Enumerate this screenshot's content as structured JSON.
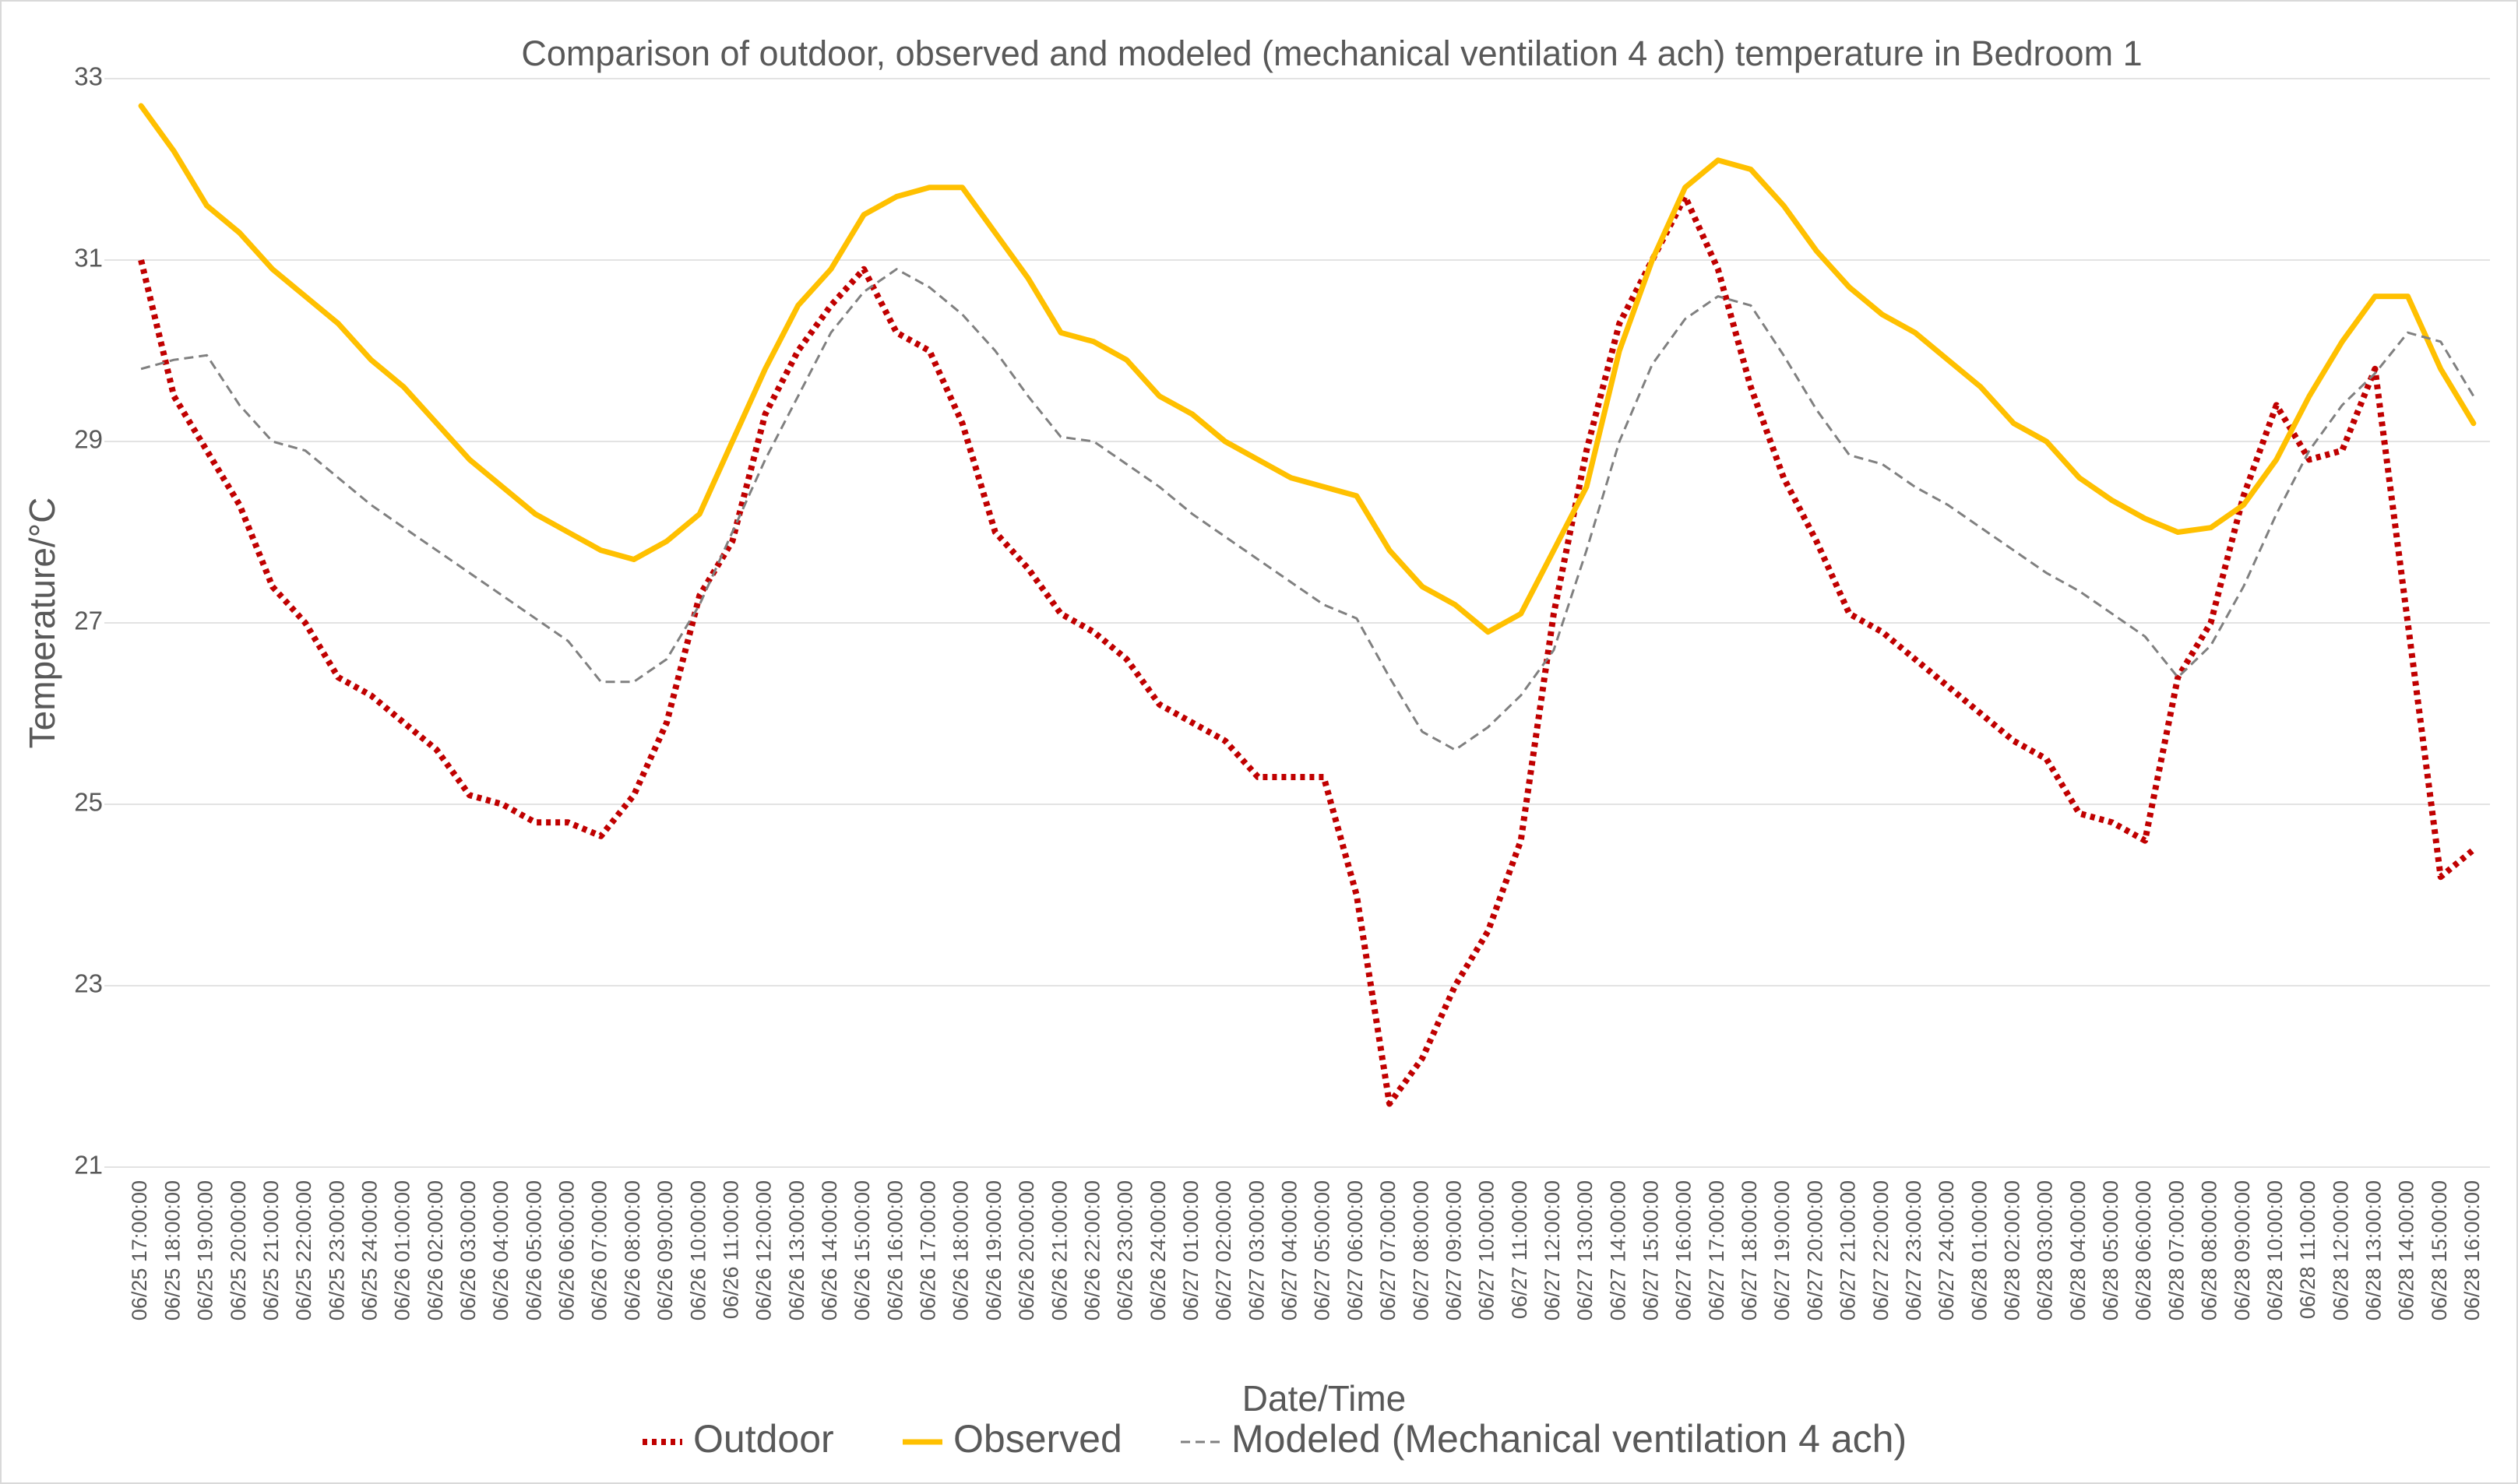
{
  "chart_data": {
    "type": "line",
    "title": "Comparison of outdoor, observed and modeled (mechanical ventilation 4 ach) temperature in Bedroom 1",
    "xlabel": "Date/Time",
    "ylabel": "Temperature/°C",
    "categories": [
      "06/25 17:00:00",
      "06/25 18:00:00",
      "06/25 19:00:00",
      "06/25 20:00:00",
      "06/25 21:00:00",
      "06/25 22:00:00",
      "06/25 23:00:00",
      "06/25 24:00:00",
      "06/26 01:00:00",
      "06/26 02:00:00",
      "06/26 03:00:00",
      "06/26 04:00:00",
      "06/26 05:00:00",
      "06/26 06:00:00",
      "06/26 07:00:00",
      "06/26 08:00:00",
      "06/26 09:00:00",
      "06/26 10:00:00",
      "06/26 11:00:00",
      "06/26 12:00:00",
      "06/26 13:00:00",
      "06/26 14:00:00",
      "06/26 15:00:00",
      "06/26 16:00:00",
      "06/26 17:00:00",
      "06/26 18:00:00",
      "06/26 19:00:00",
      "06/26 20:00:00",
      "06/26 21:00:00",
      "06/26 22:00:00",
      "06/26 23:00:00",
      "06/26 24:00:00",
      "06/27 01:00:00",
      "06/27 02:00:00",
      "06/27 03:00:00",
      "06/27 04:00:00",
      "06/27 05:00:00",
      "06/27 06:00:00",
      "06/27 07:00:00",
      "06/27 08:00:00",
      "06/27 09:00:00",
      "06/27 10:00:00",
      "06/27 11:00:00",
      "06/27 12:00:00",
      "06/27 13:00:00",
      "06/27 14:00:00",
      "06/27 15:00:00",
      "06/27 16:00:00",
      "06/27 17:00:00",
      "06/27 18:00:00",
      "06/27 19:00:00",
      "06/27 20:00:00",
      "06/27 21:00:00",
      "06/27 22:00:00",
      "06/27 23:00:00",
      "06/27 24:00:00",
      "06/28 01:00:00",
      "06/28 02:00:00",
      "06/28 03:00:00",
      "06/28 04:00:00",
      "06/28 05:00:00",
      "06/28 06:00:00",
      "06/28 07:00:00",
      "06/28 08:00:00",
      "06/28 09:00:00",
      "06/28 10:00:00",
      "06/28 11:00:00",
      "06/28 12:00:00",
      "06/28 13:00:00",
      "06/28 14:00:00",
      "06/28 15:00:00",
      "06/28 16:00:00"
    ],
    "series": [
      {
        "name": "Outdoor",
        "color": "#c00000",
        "dash": "dotted",
        "values": [
          31.0,
          29.5,
          28.9,
          28.3,
          27.4,
          27.0,
          26.4,
          26.2,
          25.9,
          25.6,
          25.1,
          25.0,
          24.8,
          24.8,
          24.65,
          25.1,
          25.9,
          27.3,
          27.9,
          29.3,
          30.0,
          30.5,
          30.9,
          30.2,
          30.0,
          29.2,
          28.0,
          27.6,
          27.1,
          26.9,
          26.6,
          26.1,
          25.9,
          25.7,
          25.3,
          25.3,
          25.3,
          24.0,
          21.7,
          22.2,
          23.0,
          23.6,
          24.6,
          27.1,
          28.9,
          30.3,
          31.0,
          31.7,
          30.9,
          29.6,
          28.6,
          27.9,
          27.1,
          26.9,
          26.6,
          26.3,
          26.0,
          25.7,
          25.5,
          24.9,
          24.8,
          24.6,
          26.4,
          27.0,
          28.4,
          29.4,
          28.8,
          28.9,
          29.8,
          27.0,
          24.2,
          24.5
        ]
      },
      {
        "name": "Observed",
        "color": "#ffc000",
        "dash": "solid",
        "values": [
          32.7,
          32.2,
          31.6,
          31.3,
          30.9,
          30.6,
          30.3,
          29.9,
          29.6,
          29.2,
          28.8,
          28.5,
          28.2,
          28.0,
          27.8,
          27.7,
          27.9,
          28.2,
          29.0,
          29.8,
          30.5,
          30.9,
          31.5,
          31.7,
          31.8,
          31.8,
          31.3,
          30.8,
          30.2,
          30.1,
          29.9,
          29.5,
          29.3,
          29.0,
          28.8,
          28.6,
          28.5,
          28.4,
          27.8,
          27.4,
          27.2,
          26.9,
          27.1,
          27.8,
          28.5,
          30.0,
          31.0,
          31.8,
          32.1,
          32.0,
          31.6,
          31.1,
          30.7,
          30.4,
          30.2,
          29.9,
          29.6,
          29.2,
          29.0,
          28.6,
          28.35,
          28.15,
          28.0,
          28.05,
          28.3,
          28.8,
          29.5,
          30.1,
          30.6,
          30.6,
          29.8,
          29.2
        ]
      },
      {
        "name": "Modeled (Mechanical ventilation 4 ach)",
        "color": "#808080",
        "dash": "dashed",
        "values": [
          29.8,
          29.9,
          29.95,
          29.4,
          29.0,
          28.9,
          28.6,
          28.3,
          28.05,
          27.8,
          27.55,
          27.3,
          27.05,
          26.8,
          26.35,
          26.35,
          26.6,
          27.2,
          28.0,
          28.8,
          29.5,
          30.2,
          30.65,
          30.9,
          30.7,
          30.4,
          30.0,
          29.5,
          29.05,
          29.0,
          28.75,
          28.5,
          28.2,
          27.95,
          27.7,
          27.45,
          27.2,
          27.05,
          26.4,
          25.8,
          25.6,
          25.85,
          26.2,
          26.7,
          27.8,
          29.0,
          29.85,
          30.35,
          30.6,
          30.5,
          29.95,
          29.35,
          28.85,
          28.75,
          28.5,
          28.3,
          28.05,
          27.8,
          27.55,
          27.35,
          27.1,
          26.85,
          26.4,
          26.75,
          27.4,
          28.2,
          28.9,
          29.4,
          29.75,
          30.2,
          30.1,
          29.5
        ]
      }
    ],
    "ylim": [
      21,
      33
    ],
    "yticks": [
      21,
      23,
      25,
      27,
      29,
      31,
      33
    ],
    "grid": true,
    "legend": "bottom"
  }
}
